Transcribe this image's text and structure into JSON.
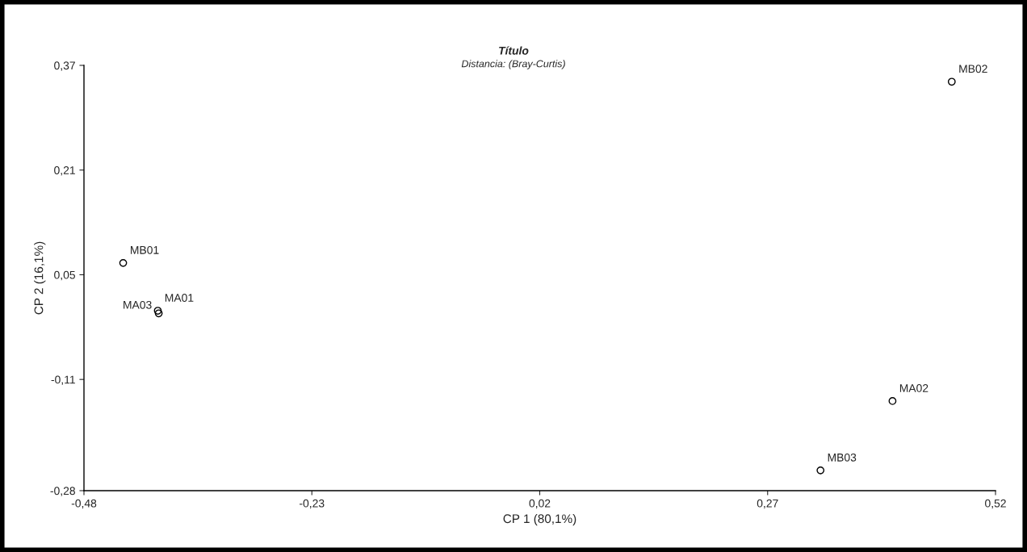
{
  "chart_data": {
    "type": "scatter",
    "title": "Título",
    "subtitle": "Distancia: (Bray-Curtis)",
    "xlabel": "CP 1 (80,1%)",
    "ylabel": "CP 2 (16,1%)",
    "series": [
      {
        "color": "#000000",
        "x": [
          0.472,
          -0.437,
          -0.399,
          -0.398,
          0.407,
          0.328
        ],
        "values": [
          0.345,
          0.068,
          -0.005,
          -0.009,
          -0.143,
          -0.249
        ]
      }
    ],
    "annotations": [
      {
        "text": "MB02",
        "x": 0.472,
        "y": 0.345
      },
      {
        "text": "MB01",
        "x": -0.437,
        "y": 0.068
      },
      {
        "text": "MA01",
        "x": -0.399,
        "y": -0.005
      },
      {
        "text": "MA03",
        "x": -0.398,
        "y": -0.009
      },
      {
        "text": "MA02",
        "x": 0.407,
        "y": -0.143
      },
      {
        "text": "MB03",
        "x": 0.328,
        "y": -0.249
      }
    ],
    "xlim": [
      -0.48,
      0.52
    ],
    "ylim": [
      -0.28,
      0.37
    ],
    "xticks": [
      {
        "value": -0.48,
        "label": "-0,48"
      },
      {
        "value": -0.23,
        "label": "-0,23"
      },
      {
        "value": 0.02,
        "label": "0,02"
      },
      {
        "value": 0.27,
        "label": "0,27"
      },
      {
        "value": 0.52,
        "label": "0,52"
      }
    ],
    "yticks": [
      {
        "value": -0.28,
        "label": "-0,28"
      },
      {
        "value": -0.11,
        "label": "-0,11"
      },
      {
        "value": 0.05,
        "label": "0,05"
      },
      {
        "value": 0.21,
        "label": "0,21"
      },
      {
        "value": 0.37,
        "label": "0,37"
      }
    ],
    "marker": "circle",
    "grid": false,
    "legend": false
  }
}
